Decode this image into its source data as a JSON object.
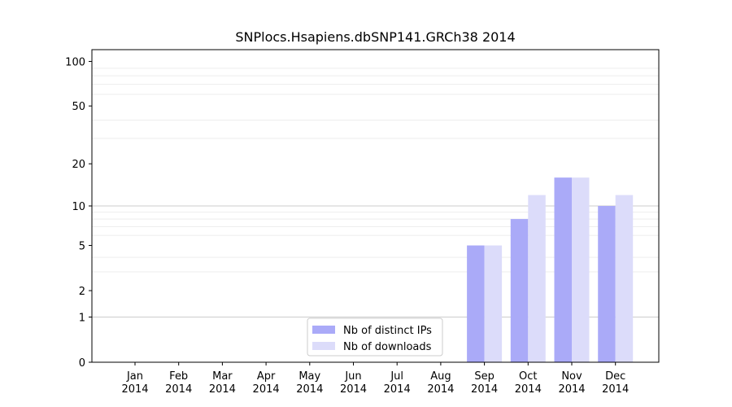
{
  "chart_data": {
    "type": "bar",
    "title": "SNPlocs.Hsapiens.dbSNP141.GRCh38 2014",
    "xlabel": "",
    "ylabel": "",
    "y_scale": "log1p",
    "ylim": [
      0,
      120
    ],
    "y_major_ticks": [
      0,
      1,
      2,
      5,
      10,
      20,
      50,
      100
    ],
    "y_major_tick_labels": [
      "0",
      "1",
      "2",
      "5",
      "10",
      "20",
      "50",
      "100"
    ],
    "categories": [
      "Jan\n2014",
      "Feb\n2014",
      "Mar\n2014",
      "Apr\n2014",
      "May\n2014",
      "Jun\n2014",
      "Jul\n2014",
      "Aug\n2014",
      "Sep\n2014",
      "Oct\n2014",
      "Nov\n2014",
      "Dec\n2014"
    ],
    "series": [
      {
        "name": "Nb of distinct IPs",
        "color": "#aaaaf8",
        "values": [
          0,
          0,
          0,
          0,
          0,
          0,
          0,
          0,
          5,
          8,
          16,
          10
        ]
      },
      {
        "name": "Nb of downloads",
        "color": "#dcdcfa",
        "values": [
          0,
          0,
          0,
          0,
          0,
          0,
          0,
          0,
          5,
          12,
          16,
          12
        ]
      }
    ],
    "grid": true,
    "legend_position": "lower-center"
  }
}
